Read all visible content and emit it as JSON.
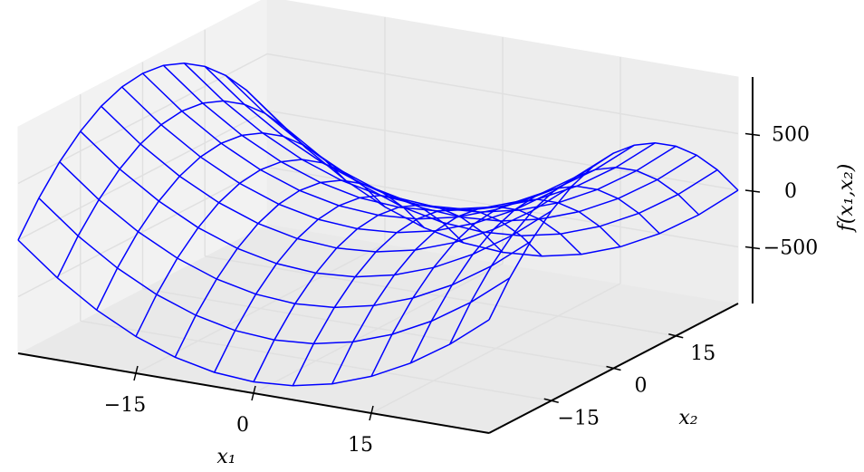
{
  "chart_data": {
    "type": "wireframe3d",
    "xlabel": "x₁",
    "ylabel": "x₂",
    "zlabel": "f(x₁,x₂)",
    "color": "#0000ff",
    "x": [
      -30,
      -25,
      -20,
      -15,
      -10,
      -5,
      0,
      5,
      10,
      15,
      20,
      25,
      30
    ],
    "y": [
      -30,
      -25,
      -20,
      -15,
      -10,
      -5,
      0,
      5,
      10,
      15,
      20,
      25,
      30
    ],
    "z": [
      [
        0,
        -275,
        -500,
        -675,
        -800,
        -875,
        -900,
        -875,
        -800,
        -675,
        -500,
        -275,
        0
      ],
      [
        275,
        0,
        -225,
        -400,
        -525,
        -600,
        -625,
        -600,
        -525,
        -400,
        -225,
        0,
        275
      ],
      [
        500,
        225,
        0,
        -175,
        -300,
        -375,
        -400,
        -375,
        -300,
        -175,
        0,
        225,
        500
      ],
      [
        675,
        400,
        175,
        0,
        -125,
        -200,
        -225,
        -200,
        -125,
        0,
        175,
        400,
        675
      ],
      [
        800,
        525,
        300,
        125,
        0,
        -75,
        -100,
        -75,
        0,
        125,
        300,
        525,
        800
      ],
      [
        875,
        600,
        375,
        200,
        75,
        0,
        -25,
        0,
        75,
        200,
        375,
        600,
        875
      ],
      [
        900,
        625,
        400,
        225,
        100,
        25,
        0,
        25,
        100,
        225,
        400,
        625,
        900
      ],
      [
        875,
        600,
        375,
        200,
        75,
        0,
        -25,
        0,
        75,
        200,
        375,
        600,
        875
      ],
      [
        800,
        525,
        300,
        125,
        0,
        -75,
        -100,
        -75,
        0,
        125,
        300,
        525,
        800
      ],
      [
        675,
        400,
        175,
        0,
        -125,
        -200,
        -225,
        -200,
        -125,
        0,
        175,
        400,
        675
      ],
      [
        500,
        225,
        0,
        -175,
        -300,
        -375,
        -400,
        -375,
        -300,
        -175,
        0,
        225,
        500
      ],
      [
        275,
        0,
        -225,
        -400,
        -525,
        -600,
        -625,
        -600,
        -525,
        -400,
        -225,
        0,
        275
      ],
      [
        0,
        -275,
        -500,
        -675,
        -800,
        -875,
        -900,
        -875,
        -800,
        -675,
        -500,
        -275,
        0
      ]
    ],
    "xlim": [
      -30,
      30
    ],
    "ylim": [
      -30,
      30
    ],
    "zlim": [
      -1000,
      1000
    ],
    "xticks": [
      {
        "value": -15,
        "label": "−15"
      },
      0,
      15
    ],
    "yticks": [
      {
        "value": -15,
        "label": "−15"
      },
      0,
      15
    ],
    "zticks": [
      {
        "value": -500,
        "label": "−500"
      },
      0,
      500
    ],
    "grid": true
  }
}
